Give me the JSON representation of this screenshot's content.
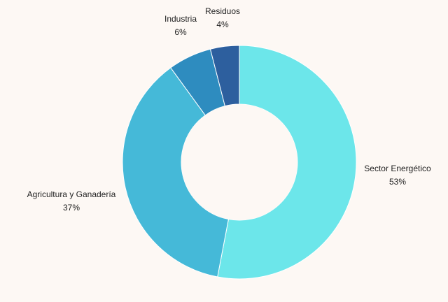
{
  "colors": {
    "background": "#fdf8f4"
  },
  "chart_data": {
    "type": "pie",
    "subtype": "donut",
    "title": "",
    "slices": [
      {
        "label": "Sector Energético",
        "value": 53,
        "value_label": "53%",
        "color": "#6ce6ea"
      },
      {
        "label": "Agricultura y Ganadería",
        "value": 37,
        "value_label": "37%",
        "color": "#45b9d8"
      },
      {
        "label": "Industria",
        "value": 6,
        "value_label": "6%",
        "color": "#2e8cbf"
      },
      {
        "label": "Residuos",
        "value": 4,
        "value_label": "4%",
        "color": "#2d5f9e"
      }
    ],
    "start_angle": "12 o'clock",
    "direction": "clockwise",
    "legend": "none"
  }
}
